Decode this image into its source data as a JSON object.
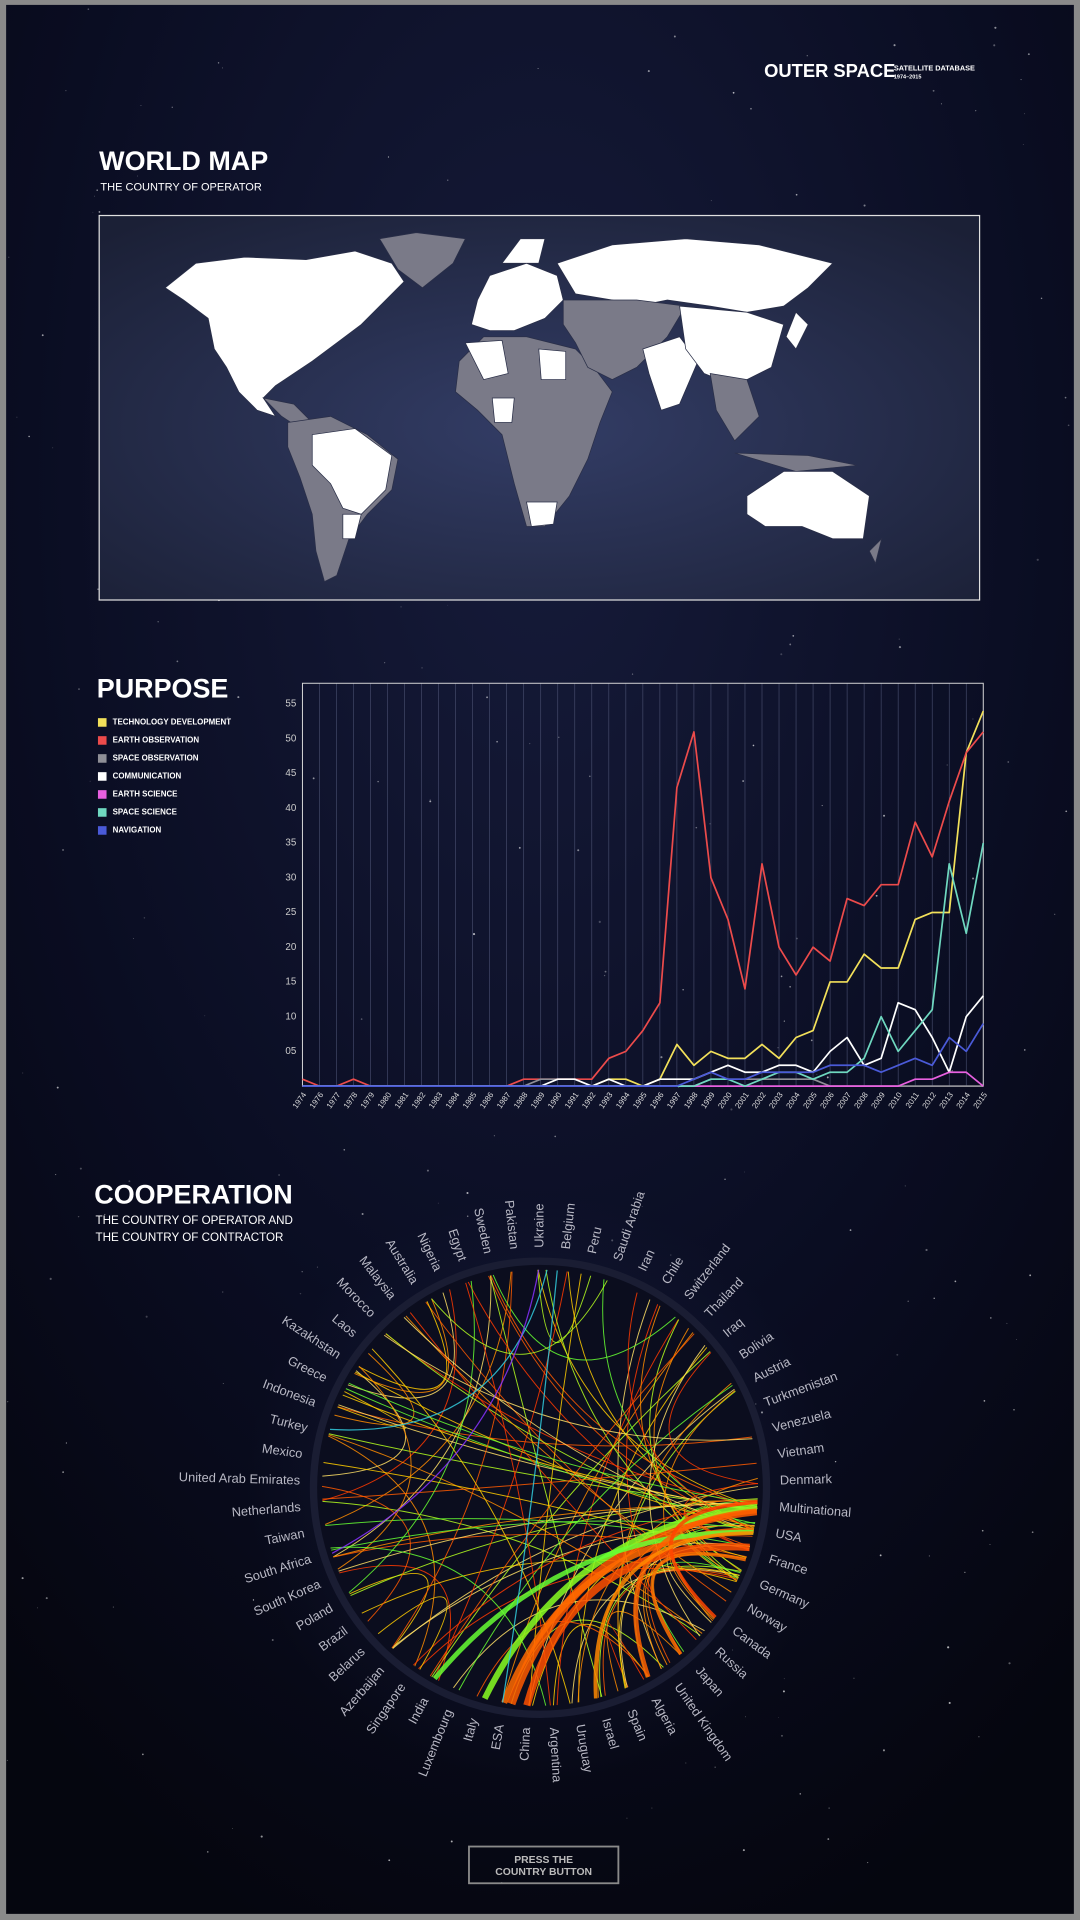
{
  "header": {
    "title": "OUTER SPACE",
    "subtitle": "SATELLITE DATABASE",
    "years": "1974–2015"
  },
  "world_map": {
    "title": "WORLD MAP",
    "subtitle": "THE COUNTRY OF OPERATOR"
  },
  "chart_data": {
    "type": "line",
    "title": "PURPOSE",
    "categories": [
      "1974",
      "1976",
      "1977",
      "1978",
      "1979",
      "1980",
      "1981",
      "1982",
      "1983",
      "1984",
      "1985",
      "1986",
      "1987",
      "1988",
      "1989",
      "1990",
      "1991",
      "1992",
      "1993",
      "1994",
      "1995",
      "1996",
      "1997",
      "1998",
      "1999",
      "2000",
      "2001",
      "2002",
      "2003",
      "2004",
      "2005",
      "2006",
      "2007",
      "2008",
      "2009",
      "2010",
      "2011",
      "2012",
      "2013",
      "2014",
      "2015"
    ],
    "series": [
      {
        "name": "TECHNOLOGY DEVELOPMENT",
        "color": "#f2e05a",
        "values": [
          0,
          0,
          0,
          0,
          0,
          0,
          0,
          0,
          0,
          0,
          0,
          0,
          0,
          0,
          0,
          0,
          0,
          0,
          1,
          1,
          0,
          1,
          6,
          3,
          5,
          4,
          4,
          6,
          4,
          7,
          8,
          15,
          15,
          19,
          17,
          17,
          24,
          25,
          25,
          48,
          54
        ]
      },
      {
        "name": "EARTH OBSERVATION",
        "color": "#ec4b4b",
        "values": [
          1,
          0,
          0,
          1,
          0,
          0,
          0,
          0,
          0,
          0,
          0,
          0,
          0,
          1,
          1,
          1,
          1,
          1,
          4,
          5,
          8,
          12,
          43,
          51,
          30,
          24,
          14,
          32,
          20,
          16,
          20,
          18,
          27,
          26,
          29,
          29,
          38,
          33,
          41,
          48,
          51
        ]
      },
      {
        "name": "SPACE OBSERVATION",
        "color": "#8f8f96",
        "values": [
          0,
          0,
          0,
          0,
          0,
          0,
          0,
          0,
          0,
          0,
          0,
          0,
          0,
          0,
          1,
          1,
          1,
          0,
          0,
          0,
          0,
          0,
          0,
          0,
          1,
          1,
          1,
          1,
          1,
          1,
          1,
          0,
          0,
          0,
          0,
          0,
          0,
          0,
          0,
          0,
          0
        ]
      },
      {
        "name": "COMMUNICATION",
        "color": "#ffffff",
        "values": [
          0,
          0,
          0,
          0,
          0,
          0,
          0,
          0,
          0,
          0,
          0,
          0,
          0,
          0,
          0,
          1,
          1,
          0,
          1,
          0,
          0,
          1,
          1,
          1,
          2,
          3,
          2,
          2,
          3,
          3,
          2,
          5,
          7,
          3,
          4,
          12,
          11,
          7,
          2,
          10,
          13
        ]
      },
      {
        "name": "EARTH SCIENCE",
        "color": "#e860e0",
        "values": [
          0,
          0,
          0,
          0,
          0,
          0,
          0,
          0,
          0,
          0,
          0,
          0,
          0,
          0,
          0,
          0,
          0,
          0,
          0,
          0,
          0,
          0,
          0,
          0,
          0,
          0,
          0,
          0,
          0,
          0,
          0,
          0,
          0,
          0,
          0,
          0,
          1,
          1,
          2,
          2,
          0
        ]
      },
      {
        "name": "SPACE SCIENCE",
        "color": "#6fd8c0",
        "values": [
          0,
          0,
          0,
          0,
          0,
          0,
          0,
          0,
          0,
          0,
          0,
          0,
          0,
          0,
          0,
          0,
          0,
          0,
          0,
          0,
          0,
          0,
          0,
          0,
          1,
          1,
          0,
          1,
          2,
          2,
          1,
          2,
          2,
          4,
          10,
          5,
          8,
          11,
          32,
          22,
          35
        ]
      },
      {
        "name": "NAVIGATION",
        "color": "#4a5ad8",
        "values": [
          0,
          0,
          0,
          0,
          0,
          0,
          0,
          0,
          0,
          0,
          0,
          0,
          0,
          0,
          0,
          0,
          0,
          0,
          0,
          0,
          0,
          0,
          0,
          1,
          2,
          1,
          1,
          2,
          2,
          2,
          2,
          3,
          3,
          3,
          2,
          3,
          4,
          3,
          7,
          5,
          9
        ]
      }
    ],
    "ylim": [
      0,
      58
    ],
    "yticks": [
      {
        "value": 5,
        "label": "05"
      },
      10,
      15,
      20,
      25,
      30,
      35,
      40,
      45,
      50,
      55
    ],
    "grid": "x",
    "legend": "left"
  },
  "cooperation": {
    "title": "COOPERATION",
    "subtitle": [
      "THE COUNTRY OF OPERATOR AND",
      "THE COUNTRY OF CONTRACTOR"
    ],
    "countries": [
      "Ukraine",
      "Belgium",
      "Peru",
      "Saudi Arabia",
      "Iran",
      "Chile",
      "Switzerland",
      "Thailand",
      "Iraq",
      "Bolivia",
      "Austria",
      "Turkmenistan",
      "Venezuela",
      "Vietnam",
      "Denmark",
      "Multinational",
      "USA",
      "France",
      "Germany",
      "Norway",
      "Canada",
      "Russia",
      "Japan",
      "United Kingdom",
      "Algeria",
      "Spain",
      "Israel",
      "Uruguay",
      "Argentina",
      "China",
      "ESA",
      "Italy",
      "Luxembourg",
      "India",
      "Singapore",
      "Azerbaijan",
      "Belarus",
      "Brazil",
      "Poland",
      "South Korea",
      "South Africa",
      "Taiwan",
      "Netherlands",
      "United Arab Emirates",
      "Mexico",
      "Turkey",
      "Indonesia",
      "Greece",
      "Kazakhstan",
      "Laos",
      "Morocco",
      "Malaysia",
      "Australia",
      "Nigeria",
      "Egypt",
      "Sweden",
      "Pakistan"
    ]
  },
  "button": {
    "lines": [
      "PRESS THE",
      "COUNTRY BUTTON"
    ]
  }
}
